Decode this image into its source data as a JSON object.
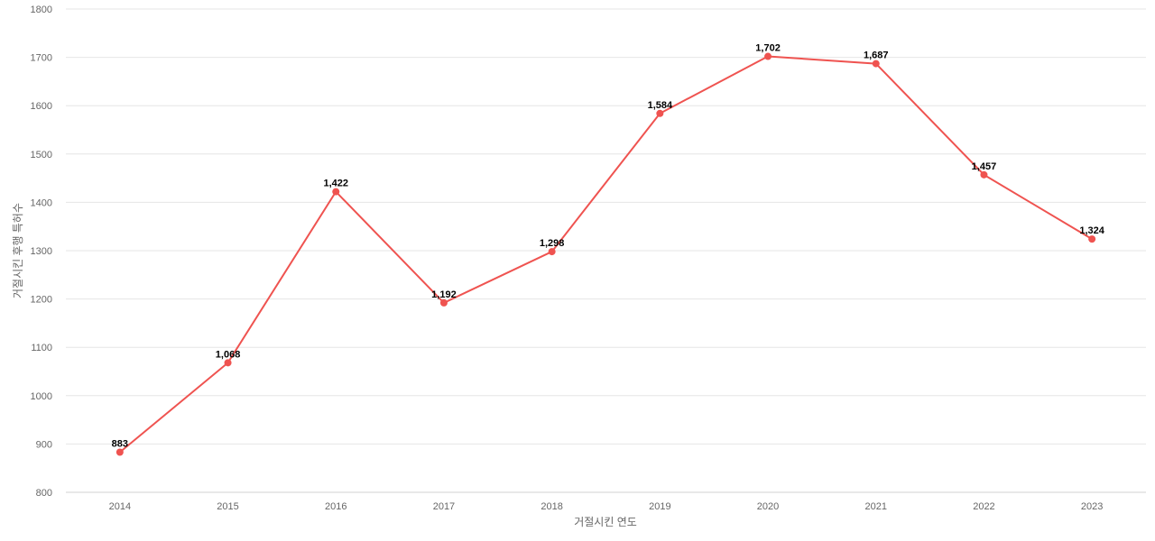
{
  "chart_data": {
    "type": "line",
    "xlabel": "거절시킨 연도",
    "ylabel": "거절시킨 후행 특허수",
    "ylim": [
      800,
      1800
    ],
    "yticks": [
      800,
      900,
      1000,
      1100,
      1200,
      1300,
      1400,
      1500,
      1600,
      1700,
      1800
    ],
    "grid": true,
    "categories": [
      "2014",
      "2015",
      "2016",
      "2017",
      "2018",
      "2019",
      "2020",
      "2021",
      "2022",
      "2023"
    ],
    "series": [
      {
        "color": "#ef5350",
        "values": [
          883,
          1068,
          1422,
          1192,
          1298,
          1584,
          1702,
          1687,
          1457,
          1324
        ],
        "labels": [
          "883",
          "1,068",
          "1,422",
          "1,192",
          "1,298",
          "1,584",
          "1,702",
          "1,687",
          "1,457",
          "1,324"
        ]
      }
    ]
  }
}
